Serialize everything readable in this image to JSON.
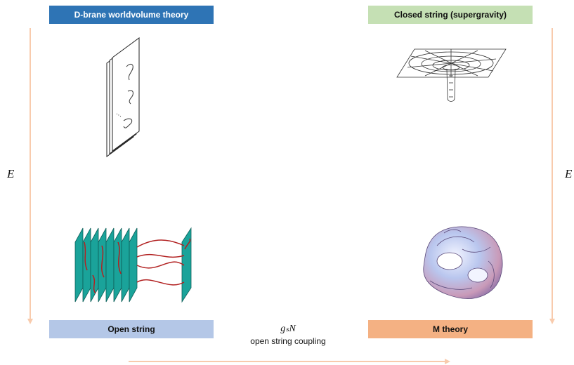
{
  "boxes": {
    "top_left": "D-brane worldvolume theory",
    "top_right": "Closed string (supergravity)",
    "bottom_left": "Open string",
    "bottom_right": "M theory"
  },
  "axes": {
    "vertical_left": "E",
    "vertical_right": "E",
    "horizontal_symbol": "gₛN",
    "horizontal_label": "open string coupling"
  },
  "colors": {
    "top_left_box": "#2e74b5",
    "top_right_box": "#c5e0b4",
    "bottom_left_box": "#b4c7e7",
    "bottom_right_box": "#f4b183",
    "arrow": "#f8cbad",
    "brane": "#1aa39a",
    "string": "#b22222"
  },
  "icons": {
    "top_left": "stacked-d-branes-with-strings-icon",
    "top_right": "black-hole-throat-grid-icon",
    "bottom_left": "brane-stack-with-open-strings-icon",
    "bottom_right": "calabi-yau-manifold-icon"
  }
}
